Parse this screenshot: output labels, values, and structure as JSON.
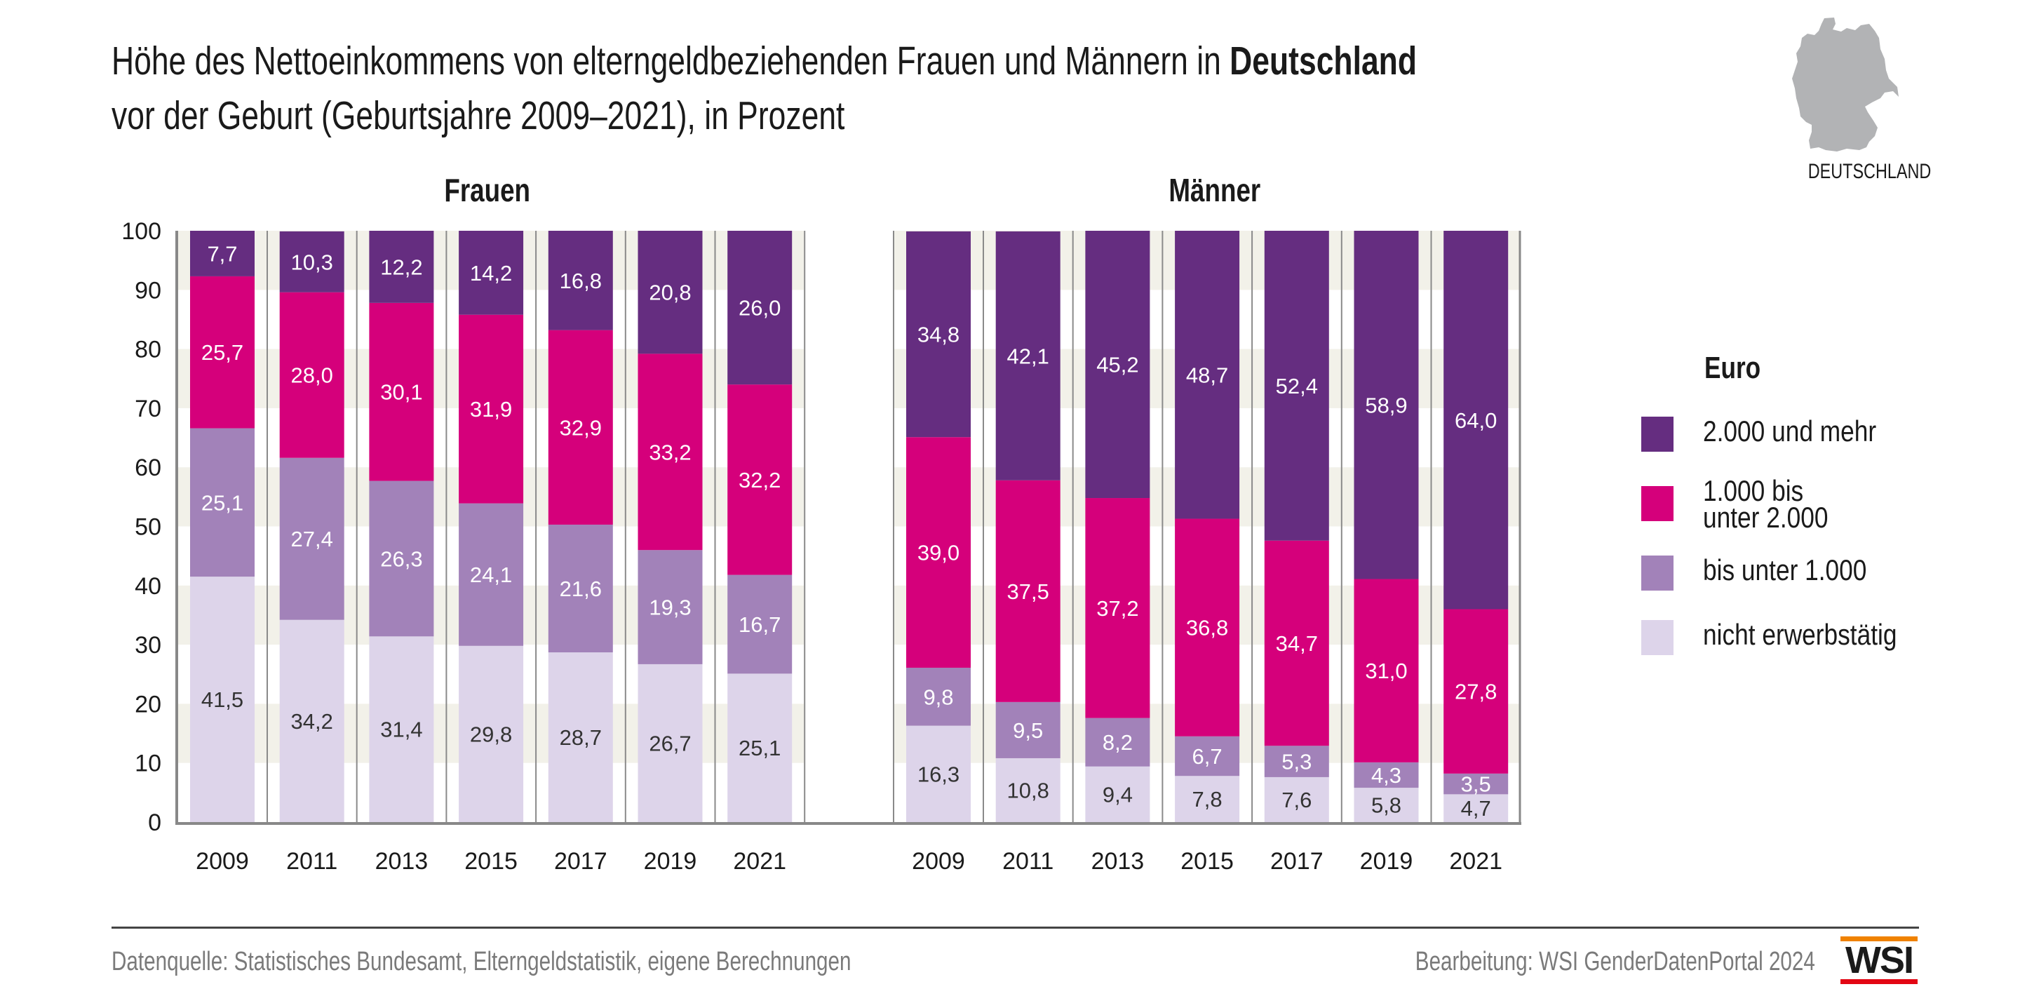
{
  "title": {
    "line1_prefix": "Höhe des Nettoeinkommens von elterngeldbeziehenden Frauen und Männern in ",
    "line1_bold": "Deutschland",
    "line2": "vor der Geburt (Geburtsjahre 2009–2021), in Prozent"
  },
  "region": {
    "label": "DEUTSCHLAND",
    "icon": "germany-map-icon"
  },
  "footer": {
    "source": "Datenquelle: Statistisches Bundesamt, Elterngeldstatistik, eigene Berechnungen",
    "credit": "Bearbeitung: WSI GenderDatenPortal 2024",
    "logo_text": "WSI"
  },
  "colors": {
    "2000_und_mehr": "#652d80",
    "1000_bis_2000": "#d5007b",
    "bis_1000": "#a282b9",
    "nicht_erwerbstaetig": "#ddd4ea",
    "band": "#f2f1e9",
    "logo_orange": "#f08200",
    "logo_red": "#e30613"
  },
  "legend": {
    "title": "Euro",
    "items": [
      {
        "label": "2.000 und mehr",
        "color": "#652d80"
      },
      {
        "label": "1.000 bis unter 2.000",
        "color": "#d5007b"
      },
      {
        "label": "bis unter 1.000",
        "color": "#a282b9"
      },
      {
        "label": "nicht erwerbstätig",
        "color": "#ddd4ea"
      }
    ]
  },
  "chart_data": {
    "type": "bar",
    "stacked": true,
    "title": "Höhe des Nettoeinkommens von elterngeldbeziehenden Frauen und Männern in Deutschland vor der Geburt (Geburtsjahre 2009–2021), in Prozent",
    "xlabel": "",
    "ylabel": "",
    "ylim": [
      0,
      100
    ],
    "yticks": [
      "0",
      "10",
      "20",
      "30",
      "40",
      "50",
      "60",
      "70",
      "80",
      "90",
      "100"
    ],
    "grid": "alternating horizontal bands",
    "legend_position": "right",
    "legend_title": "Euro",
    "series_names": [
      "nicht erwerbstätig",
      "bis unter 1.000",
      "1.000 bis unter 2.000",
      "2.000 und mehr"
    ],
    "groups": [
      {
        "name": "Frauen",
        "categories": [
          "2009",
          "2011",
          "2013",
          "2015",
          "2017",
          "2019",
          "2021"
        ],
        "series": [
          {
            "name": "nicht erwerbstätig",
            "values": [
              41.5,
              34.2,
              31.4,
              29.8,
              28.7,
              26.7,
              25.1
            ],
            "labels": [
              "41,5",
              "34,2",
              "31,4",
              "29,8",
              "28,7",
              "26,7",
              "25,1"
            ]
          },
          {
            "name": "bis unter 1.000",
            "values": [
              25.1,
              27.4,
              26.3,
              24.1,
              21.6,
              19.3,
              16.7
            ],
            "labels": [
              "25,1",
              "27,4",
              "26,3",
              "24,1",
              "21,6",
              "19,3",
              "16,7"
            ]
          },
          {
            "name": "1.000 bis unter 2.000",
            "values": [
              25.7,
              28.0,
              30.1,
              31.9,
              32.9,
              33.2,
              32.2
            ],
            "labels": [
              "25,7",
              "28,0",
              "30,1",
              "31,9",
              "32,9",
              "33,2",
              "32,2"
            ]
          },
          {
            "name": "2.000 und mehr",
            "values": [
              7.7,
              10.3,
              12.2,
              14.2,
              16.8,
              20.8,
              26.0
            ],
            "labels": [
              "7,7",
              "10,3",
              "12,2",
              "14,2",
              "16,8",
              "20,8",
              "26,0"
            ]
          }
        ]
      },
      {
        "name": "Männer",
        "categories": [
          "2009",
          "2011",
          "2013",
          "2015",
          "2017",
          "2019",
          "2021"
        ],
        "series": [
          {
            "name": "nicht erwerbstätig",
            "values": [
              16.3,
              10.8,
              9.4,
              7.8,
              7.6,
              5.8,
              4.7
            ],
            "labels": [
              "16,3",
              "10,8",
              "9,4",
              "7,8",
              "7,6",
              "5,8",
              "4,7"
            ]
          },
          {
            "name": "bis unter 1.000",
            "values": [
              9.8,
              9.5,
              8.2,
              6.7,
              5.3,
              4.3,
              3.5
            ],
            "labels": [
              "9,8",
              "9,5",
              "8,2",
              "6,7",
              "5,3",
              "4,3",
              "3,5"
            ]
          },
          {
            "name": "1.000 bis unter 2.000",
            "values": [
              39.0,
              37.5,
              37.2,
              36.8,
              34.7,
              31.0,
              27.8
            ],
            "labels": [
              "39,0",
              "37,5",
              "37,2",
              "36,8",
              "34,7",
              "31,0",
              "27,8"
            ]
          },
          {
            "name": "2.000 und mehr",
            "values": [
              34.8,
              42.1,
              45.2,
              48.7,
              52.4,
              58.9,
              64.0
            ],
            "labels": [
              "34,8",
              "42,1",
              "45,2",
              "48,7",
              "52,4",
              "58,9",
              "64,0"
            ]
          }
        ]
      }
    ]
  }
}
